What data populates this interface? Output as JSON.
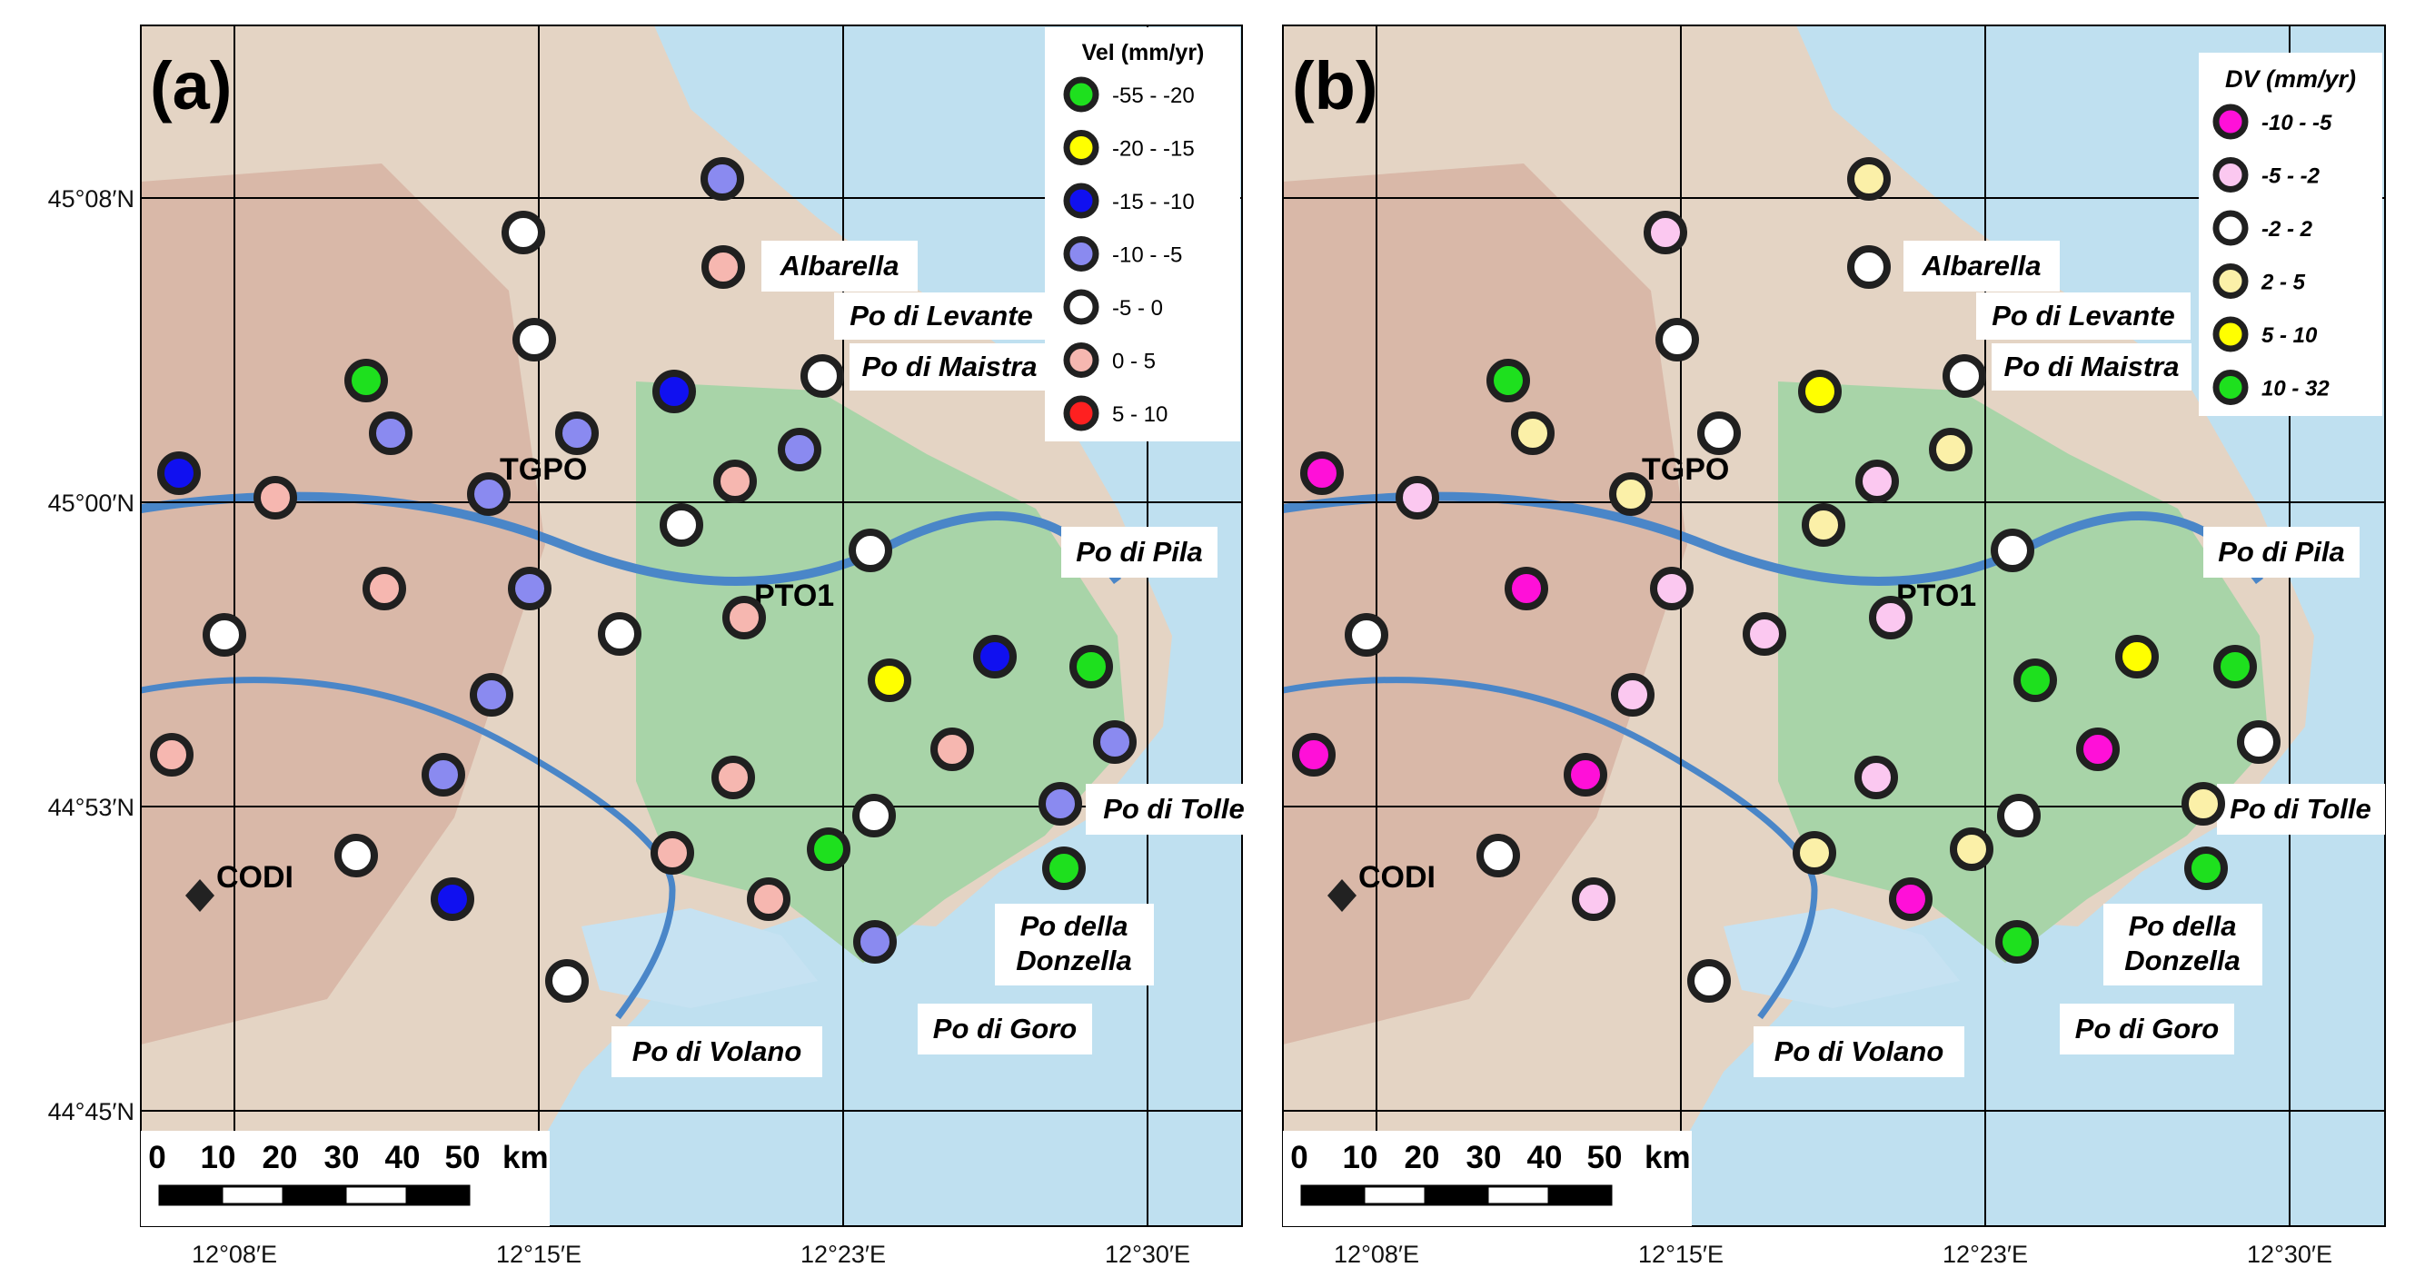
{
  "lat_labels": [
    "45°08′N",
    "45°00′N",
    "44°53′N",
    "44°45′N"
  ],
  "lon_labels": [
    "12°08′E",
    "12°15′E",
    "12°23′E",
    "12°30′E"
  ],
  "colors": {
    "green": "#1ee01e",
    "yellow": "#ffff00",
    "blue": "#1010f0",
    "lightblue": "#8a8af0",
    "white": "#ffffff",
    "pink": "#f6b7b0",
    "red": "#ff2020",
    "magenta": "#ff10d8",
    "lightpink": "#fbc8f0",
    "cream": "#fbf0a8"
  },
  "panels": [
    {
      "tag": "(a)",
      "legend": {
        "title": "Vel (mm/yr)",
        "items": [
          {
            "label": "-55 - -20",
            "color": "green"
          },
          {
            "label": "-20 - -15",
            "color": "yellow"
          },
          {
            "label": "-15 - -10",
            "color": "blue"
          },
          {
            "label": "-10 - -5",
            "color": "lightblue"
          },
          {
            "label": "-5 - 0",
            "color": "white"
          },
          {
            "label": "0 - 5",
            "color": "pink"
          },
          {
            "label": "5 - 10",
            "color": "red"
          }
        ]
      },
      "station_colors": [
        "lightblue",
        "white",
        "pink",
        "white",
        "green",
        "blue",
        "white",
        "lightblue",
        "lightblue",
        "blue",
        "pink",
        "lightblue",
        "pink",
        "white",
        "pink",
        "lightblue",
        "white",
        "white",
        "pink",
        "white",
        "lightblue",
        "yellow",
        "blue",
        "green",
        "pink",
        "lightblue",
        "pink",
        "lightblue",
        "pink",
        "white",
        "white",
        "pink",
        "green",
        "blue",
        "lightblue",
        "green",
        "pink",
        "lightblue",
        "white",
        "lightblue"
      ]
    },
    {
      "tag": "(b)",
      "legend": {
        "title": "DV (mm/yr)",
        "items": [
          {
            "label": "-10 - -5",
            "color": "magenta"
          },
          {
            "label": "-5 - -2",
            "color": "lightpink"
          },
          {
            "label": "-2 - 2",
            "color": "white"
          },
          {
            "label": "2 - 5",
            "color": "cream"
          },
          {
            "label": "5 - 10",
            "color": "yellow"
          },
          {
            "label": "10 - 32",
            "color": "green"
          }
        ]
      },
      "station_colors": [
        "cream",
        "lightpink",
        "white",
        "white",
        "green",
        "yellow",
        "white",
        "cream",
        "white",
        "magenta",
        "lightpink",
        "cream",
        "lightpink",
        "cream",
        "magenta",
        "lightpink",
        "lightpink",
        "white",
        "lightpink",
        "white",
        "lightpink",
        "green",
        "yellow",
        "green",
        "magenta",
        "white",
        "magenta",
        "magenta",
        "lightpink",
        "white",
        "white",
        "cream",
        "cream",
        "lightpink",
        "cream",
        "green",
        "magenta",
        "green",
        "white",
        "cream"
      ]
    }
  ],
  "places": {
    "albarella": "Albarella",
    "po_di_levante": "Po di Levante",
    "po_di_maistra": "Po di Maistra",
    "po_di_pila": "Po di Pila",
    "po_di_tolle": "Po di Tolle",
    "po_della": "Po della",
    "donzella": "Donzella",
    "po_di_goro": "Po di Goro",
    "po_di_volano": "Po di Volano"
  },
  "stations": {
    "tgpo": "TGPO",
    "pto1": "PTO1",
    "codi": "CODI"
  },
  "scale_bar": {
    "ticks": [
      "0",
      "10",
      "20",
      "30",
      "40",
      "50"
    ],
    "unit": "km"
  }
}
